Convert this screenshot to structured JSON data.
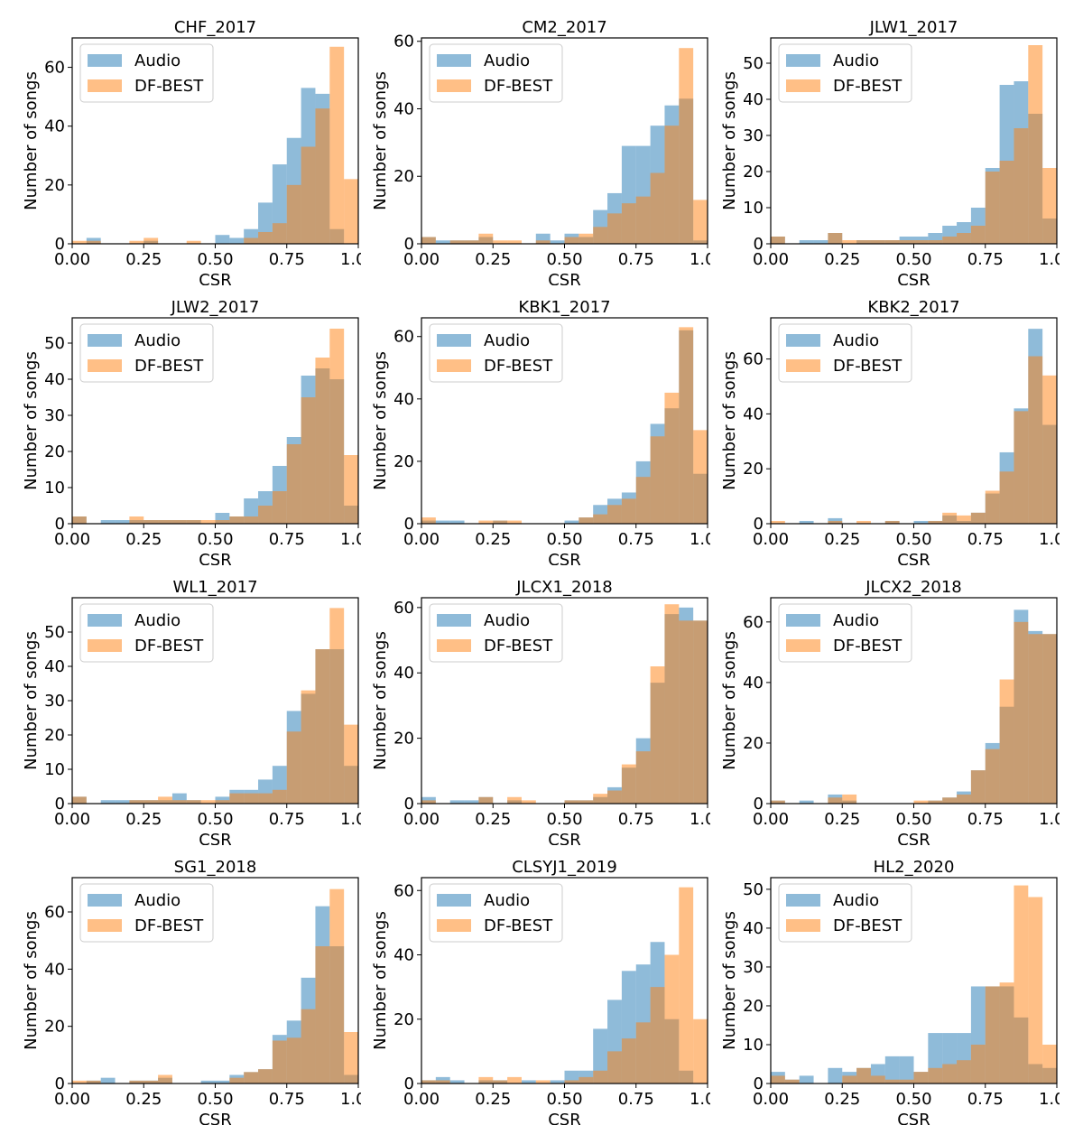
{
  "colors": {
    "audio": "#1f77b4",
    "dfbest": "#ff7f0e",
    "overlap": "#b08a62",
    "axis": "#000000",
    "legend_border": "#cccccc"
  },
  "chart_data": [
    {
      "type": "bar",
      "title": "CHF_2017",
      "xlabel": "CSR",
      "ylabel": "Number of songs",
      "xlim": [
        0,
        1
      ],
      "ylim": [
        0,
        70
      ],
      "xticks": [
        "0.00",
        "0.25",
        "0.50",
        "0.75",
        "1.00"
      ],
      "yticks": [
        0,
        20,
        40,
        60
      ],
      "legend_placement": "top-left",
      "bins": 20,
      "series": [
        {
          "name": "Audio",
          "values": [
            0,
            2,
            0,
            0,
            0,
            1,
            0,
            0,
            0,
            0,
            3,
            2,
            5,
            14,
            27,
            36,
            53,
            51,
            5,
            0
          ]
        },
        {
          "name": "DF-BEST",
          "values": [
            1,
            1,
            0,
            0,
            1,
            2,
            0,
            0,
            1,
            0,
            0,
            0,
            2,
            4,
            7,
            20,
            33,
            46,
            67,
            22
          ]
        }
      ]
    },
    {
      "type": "bar",
      "title": "CM2_2017",
      "xlabel": "CSR",
      "ylabel": "Number of songs",
      "xlim": [
        0,
        1
      ],
      "ylim": [
        0,
        61
      ],
      "xticks": [
        "0.00",
        "0.25",
        "0.50",
        "0.75",
        "1.00"
      ],
      "yticks": [
        0,
        20,
        40,
        60
      ],
      "legend_placement": "top-left",
      "bins": 20,
      "series": [
        {
          "name": "Audio",
          "values": [
            2,
            1,
            1,
            1,
            2,
            0,
            0,
            0,
            3,
            1,
            3,
            2,
            10,
            15,
            29,
            29,
            35,
            41,
            43,
            1
          ]
        },
        {
          "name": "DF-BEST",
          "values": [
            2,
            0,
            1,
            1,
            3,
            1,
            1,
            0,
            1,
            0,
            2,
            3,
            5,
            9,
            12,
            14,
            21,
            35,
            58,
            13
          ]
        }
      ]
    },
    {
      "type": "bar",
      "title": "JLW1_2017",
      "xlabel": "CSR",
      "ylabel": "Number of songs",
      "xlim": [
        0,
        1
      ],
      "ylim": [
        0,
        57
      ],
      "xticks": [
        "0.00",
        "0.25",
        "0.50",
        "0.75",
        "1.00"
      ],
      "yticks": [
        0,
        10,
        20,
        30,
        40,
        50
      ],
      "legend_placement": "top-left",
      "bins": 20,
      "series": [
        {
          "name": "Audio",
          "values": [
            2,
            0,
            1,
            1,
            3,
            0,
            1,
            1,
            1,
            2,
            2,
            3,
            5,
            6,
            10,
            21,
            44,
            45,
            36,
            7
          ]
        },
        {
          "name": "DF-BEST",
          "values": [
            2,
            0,
            0,
            0,
            3,
            1,
            1,
            1,
            1,
            1,
            1,
            1,
            2,
            3,
            5,
            20,
            23,
            32,
            55,
            21
          ]
        }
      ]
    },
    {
      "type": "bar",
      "title": "JLW2_2017",
      "xlabel": "CSR",
      "ylabel": "Number of songs",
      "xlim": [
        0,
        1
      ],
      "ylim": [
        0,
        57
      ],
      "xticks": [
        "0.00",
        "0.25",
        "0.50",
        "0.75",
        "1.00"
      ],
      "yticks": [
        0,
        10,
        20,
        30,
        40,
        50
      ],
      "legend_placement": "top-left",
      "bins": 20,
      "series": [
        {
          "name": "Audio",
          "values": [
            2,
            0,
            1,
            1,
            1,
            1,
            1,
            1,
            1,
            0,
            3,
            2,
            7,
            9,
            16,
            24,
            41,
            43,
            40,
            5
          ]
        },
        {
          "name": "DF-BEST",
          "values": [
            2,
            0,
            0,
            0,
            2,
            1,
            1,
            1,
            1,
            1,
            1,
            2,
            2,
            5,
            9,
            22,
            35,
            46,
            54,
            19
          ]
        }
      ]
    },
    {
      "type": "bar",
      "title": "KBK1_2017",
      "xlabel": "CSR",
      "ylabel": "Number of songs",
      "xlim": [
        0,
        1
      ],
      "ylim": [
        0,
        66
      ],
      "xticks": [
        "0.00",
        "0.25",
        "0.50",
        "0.75",
        "1.00"
      ],
      "yticks": [
        0,
        20,
        40,
        60
      ],
      "legend_placement": "top-left",
      "bins": 20,
      "series": [
        {
          "name": "Audio",
          "values": [
            1,
            1,
            1,
            0,
            0,
            1,
            0,
            0,
            0,
            0,
            1,
            2,
            6,
            8,
            10,
            20,
            32,
            37,
            62,
            16
          ]
        },
        {
          "name": "DF-BEST",
          "values": [
            2,
            0,
            0,
            0,
            1,
            1,
            1,
            0,
            0,
            0,
            0,
            2,
            3,
            6,
            8,
            15,
            28,
            42,
            63,
            30
          ]
        }
      ]
    },
    {
      "type": "bar",
      "title": "KBK2_2017",
      "xlabel": "CSR",
      "ylabel": "Number of songs",
      "xlim": [
        0,
        1
      ],
      "ylim": [
        0,
        75
      ],
      "xticks": [
        "0.00",
        "0.25",
        "0.50",
        "0.75",
        "1.00"
      ],
      "yticks": [
        0,
        20,
        40,
        60
      ],
      "legend_placement": "top-left",
      "bins": 20,
      "series": [
        {
          "name": "Audio",
          "values": [
            0,
            0,
            1,
            0,
            2,
            0,
            0,
            0,
            1,
            0,
            1,
            1,
            3,
            1,
            4,
            11,
            26,
            42,
            71,
            36
          ]
        },
        {
          "name": "DF-BEST",
          "values": [
            1,
            0,
            0,
            0,
            1,
            0,
            1,
            0,
            1,
            0,
            0,
            1,
            4,
            3,
            4,
            12,
            19,
            41,
            61,
            54
          ]
        }
      ]
    },
    {
      "type": "bar",
      "title": "WL1_2017",
      "xlabel": "CSR",
      "ylabel": "Number of songs",
      "xlim": [
        0,
        1
      ],
      "ylim": [
        0,
        60
      ],
      "xticks": [
        "0.00",
        "0.25",
        "0.50",
        "0.75",
        "1.00"
      ],
      "yticks": [
        0,
        10,
        20,
        30,
        40,
        50
      ],
      "legend_placement": "top-left",
      "bins": 20,
      "series": [
        {
          "name": "Audio",
          "values": [
            2,
            0,
            1,
            1,
            1,
            1,
            1,
            3,
            1,
            0,
            2,
            4,
            4,
            7,
            11,
            27,
            32,
            45,
            45,
            11
          ]
        },
        {
          "name": "DF-BEST",
          "values": [
            2,
            0,
            0,
            0,
            1,
            1,
            2,
            1,
            1,
            1,
            1,
            3,
            3,
            3,
            4,
            21,
            33,
            45,
            57,
            23
          ]
        }
      ]
    },
    {
      "type": "bar",
      "title": "JLCX1_2018",
      "xlabel": "CSR",
      "ylabel": "Number of songs",
      "xlim": [
        0,
        1
      ],
      "ylim": [
        0,
        63
      ],
      "xticks": [
        "0.00",
        "0.25",
        "0.50",
        "0.75",
        "1.00"
      ],
      "yticks": [
        0,
        20,
        40,
        60
      ],
      "legend_placement": "top-left",
      "bins": 20,
      "series": [
        {
          "name": "Audio",
          "values": [
            2,
            0,
            1,
            1,
            2,
            0,
            1,
            0,
            0,
            0,
            1,
            1,
            2,
            5,
            11,
            20,
            37,
            58,
            60,
            56
          ]
        },
        {
          "name": "DF-BEST",
          "values": [
            1,
            0,
            0,
            0,
            2,
            0,
            2,
            1,
            0,
            0,
            1,
            1,
            3,
            4,
            12,
            16,
            42,
            61,
            56,
            56
          ]
        }
      ]
    },
    {
      "type": "bar",
      "title": "JLCX2_2018",
      "xlabel": "CSR",
      "ylabel": "Number of songs",
      "xlim": [
        0,
        1
      ],
      "ylim": [
        0,
        68
      ],
      "xticks": [
        "0.00",
        "0.25",
        "0.50",
        "0.75",
        "1.00"
      ],
      "yticks": [
        0,
        20,
        40,
        60
      ],
      "legend_placement": "top-left",
      "bins": 20,
      "series": [
        {
          "name": "Audio",
          "values": [
            1,
            0,
            1,
            0,
            3,
            1,
            0,
            0,
            0,
            0,
            0,
            1,
            2,
            4,
            11,
            20,
            32,
            64,
            57,
            56
          ]
        },
        {
          "name": "DF-BEST",
          "values": [
            1,
            0,
            0,
            0,
            2,
            3,
            0,
            0,
            0,
            0,
            1,
            1,
            2,
            3,
            11,
            18,
            41,
            60,
            56,
            56
          ]
        }
      ]
    },
    {
      "type": "bar",
      "title": "SG1_2018",
      "xlabel": "CSR",
      "ylabel": "Number of songs",
      "xlim": [
        0,
        1
      ],
      "ylim": [
        0,
        72
      ],
      "xticks": [
        "0.00",
        "0.25",
        "0.50",
        "0.75",
        "1.00"
      ],
      "yticks": [
        0,
        20,
        40,
        60
      ],
      "legend_placement": "top-left",
      "bins": 20,
      "series": [
        {
          "name": "Audio",
          "values": [
            0,
            1,
            2,
            0,
            1,
            1,
            2,
            0,
            0,
            1,
            1,
            3,
            4,
            5,
            17,
            22,
            37,
            62,
            48,
            3
          ]
        },
        {
          "name": "DF-BEST",
          "values": [
            1,
            1,
            0,
            0,
            1,
            1,
            3,
            0,
            0,
            0,
            0,
            2,
            4,
            5,
            15,
            16,
            26,
            48,
            68,
            18
          ]
        }
      ]
    },
    {
      "type": "bar",
      "title": "CLSYJ1_2019",
      "xlabel": "CSR",
      "ylabel": "Number of songs",
      "xlim": [
        0,
        1
      ],
      "ylim": [
        0,
        64
      ],
      "xticks": [
        "0.00",
        "0.25",
        "0.50",
        "0.75",
        "1.00"
      ],
      "yticks": [
        0,
        20,
        40,
        60
      ],
      "legend_placement": "top-left",
      "bins": 20,
      "series": [
        {
          "name": "Audio",
          "values": [
            1,
            2,
            1,
            0,
            1,
            1,
            0,
            1,
            0,
            1,
            4,
            4,
            17,
            26,
            35,
            37,
            44,
            20,
            4,
            0
          ]
        },
        {
          "name": "DF-BEST",
          "values": [
            1,
            1,
            0,
            0,
            2,
            1,
            2,
            0,
            1,
            0,
            1,
            2,
            4,
            10,
            14,
            19,
            30,
            40,
            61,
            20
          ]
        }
      ]
    },
    {
      "type": "bar",
      "title": "HL2_2020",
      "xlabel": "CSR",
      "ylabel": "Number of songs",
      "xlim": [
        0,
        1
      ],
      "ylim": [
        0,
        53
      ],
      "xticks": [
        "0.00",
        "0.25",
        "0.50",
        "0.75",
        "1.00"
      ],
      "yticks": [
        0,
        10,
        20,
        30,
        40,
        50
      ],
      "legend_placement": "top-left",
      "bins": 20,
      "series": [
        {
          "name": "Audio",
          "values": [
            3,
            1,
            2,
            0,
            4,
            3,
            4,
            5,
            7,
            7,
            3,
            13,
            13,
            13,
            25,
            25,
            25,
            17,
            5,
            4
          ]
        },
        {
          "name": "DF-BEST",
          "values": [
            2,
            1,
            0,
            0,
            0,
            2,
            4,
            2,
            1,
            1,
            3,
            4,
            5,
            6,
            10,
            25,
            26,
            51,
            48,
            10
          ]
        }
      ]
    }
  ]
}
